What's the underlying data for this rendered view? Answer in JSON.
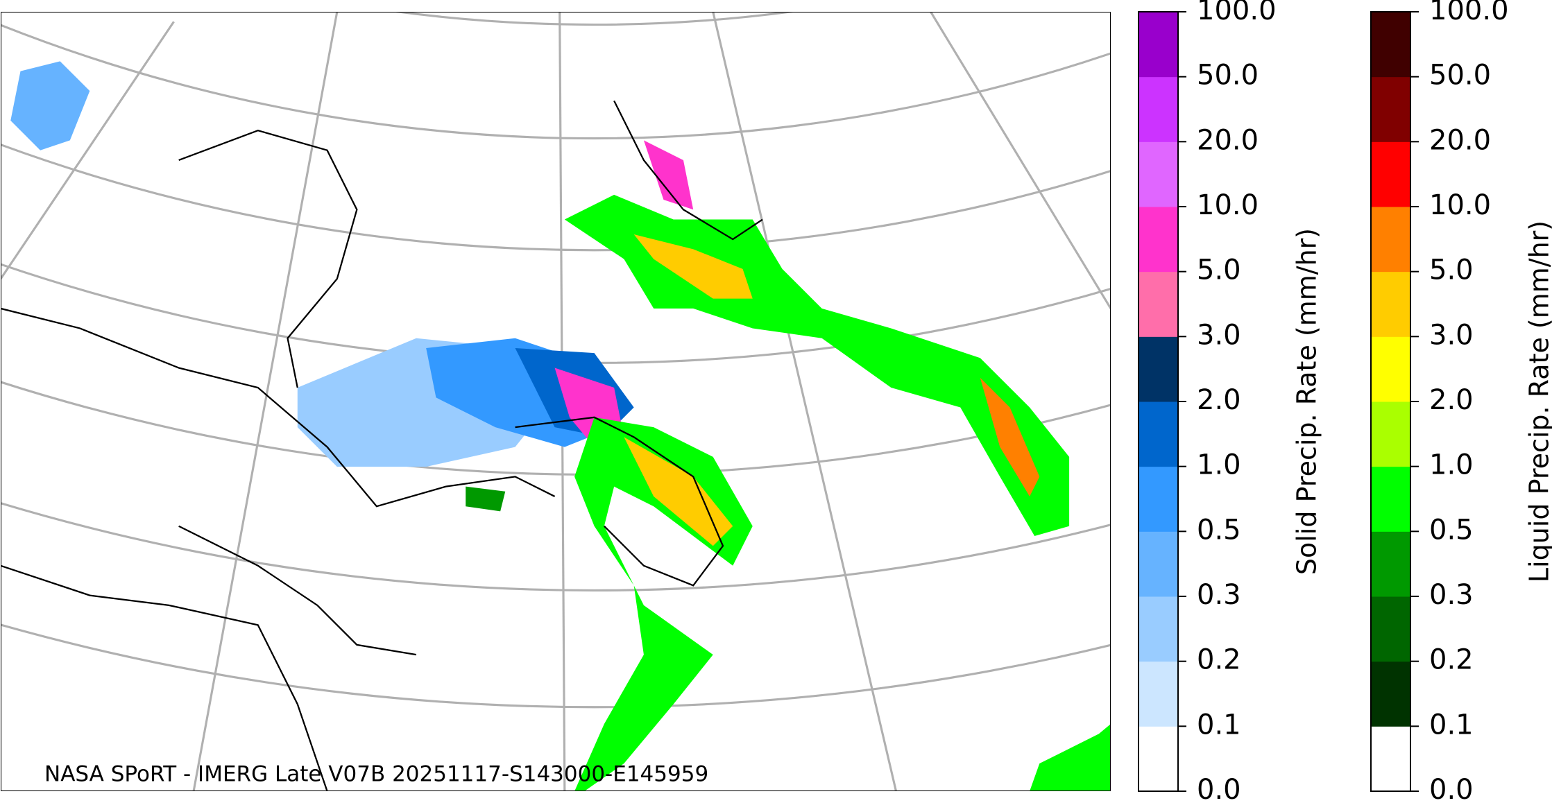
{
  "map": {
    "caption": "NASA SPoRT - IMERG Late V07B 20251117-S143000-E145959"
  },
  "colorbars": [
    {
      "label": "Solid Precip. Rate (mm/hr)",
      "ticks": [
        "0.0",
        "0.1",
        "0.2",
        "0.3",
        "0.5",
        "1.0",
        "2.0",
        "3.0",
        "5.0",
        "10.0",
        "20.0",
        "50.0",
        "100.0"
      ],
      "colors": [
        "#ffffff",
        "#cce6ff",
        "#99ccff",
        "#66b3ff",
        "#3399ff",
        "#0066cc",
        "#003366",
        "#ff6eaa",
        "#ff33cc",
        "#e066ff",
        "#cc33ff",
        "#9900cc"
      ]
    },
    {
      "label": "Liquid Precip. Rate (mm/hr)",
      "ticks": [
        "0.0",
        "0.1",
        "0.2",
        "0.3",
        "0.5",
        "1.0",
        "2.0",
        "3.0",
        "5.0",
        "10.0",
        "20.0",
        "50.0",
        "100.0"
      ],
      "colors": [
        "#ffffff",
        "#003300",
        "#006600",
        "#009900",
        "#00ff00",
        "#aaff00",
        "#ffff00",
        "#ffcc00",
        "#ff8000",
        "#ff0000",
        "#800000",
        "#400000"
      ]
    }
  ]
}
